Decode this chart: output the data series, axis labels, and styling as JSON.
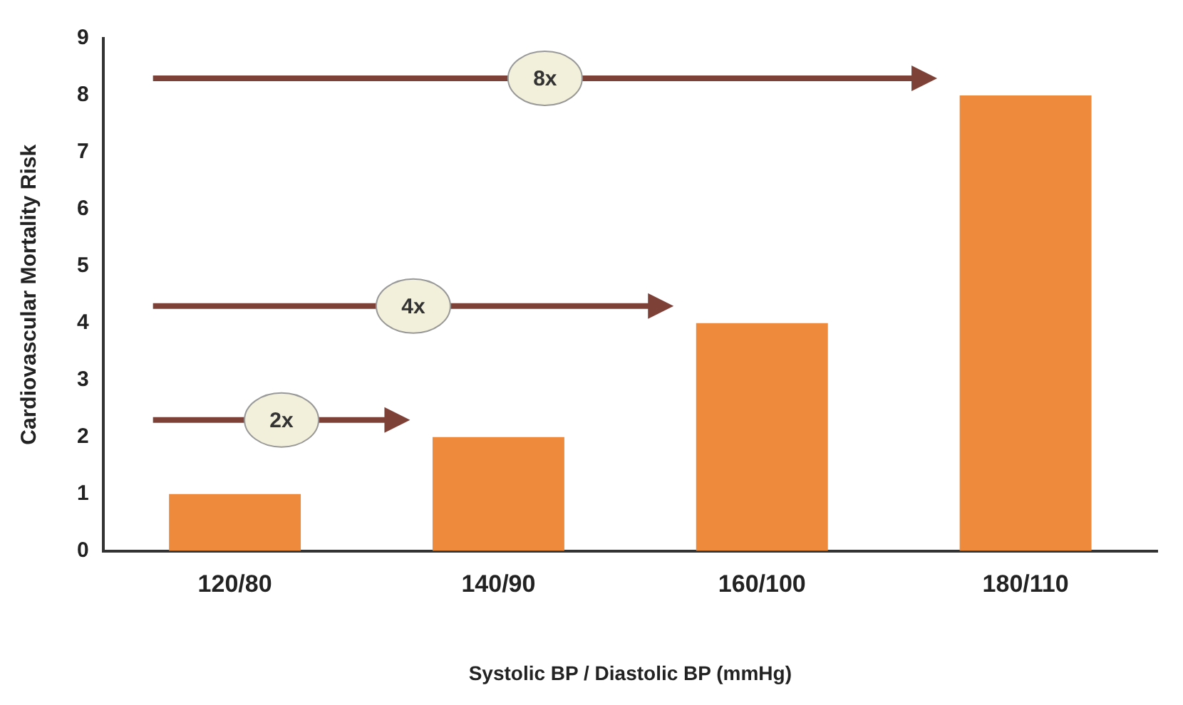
{
  "chart_data": {
    "type": "bar",
    "xlabel": "Systolic BP / Diastolic BP (mmHg)",
    "ylabel": "Cardiovascular Mortality Risk",
    "categories": [
      "120/80",
      "140/90",
      "160/100",
      "180/110"
    ],
    "values": [
      1,
      2,
      4,
      8
    ],
    "color": "#ed8a3c",
    "ylim": [
      0,
      9
    ],
    "yticks": [
      0,
      1,
      2,
      3,
      4,
      5,
      6,
      7,
      8,
      9
    ],
    "grid": false,
    "legend": false,
    "annotations": [
      "2x",
      "4x",
      "8x"
    ]
  }
}
